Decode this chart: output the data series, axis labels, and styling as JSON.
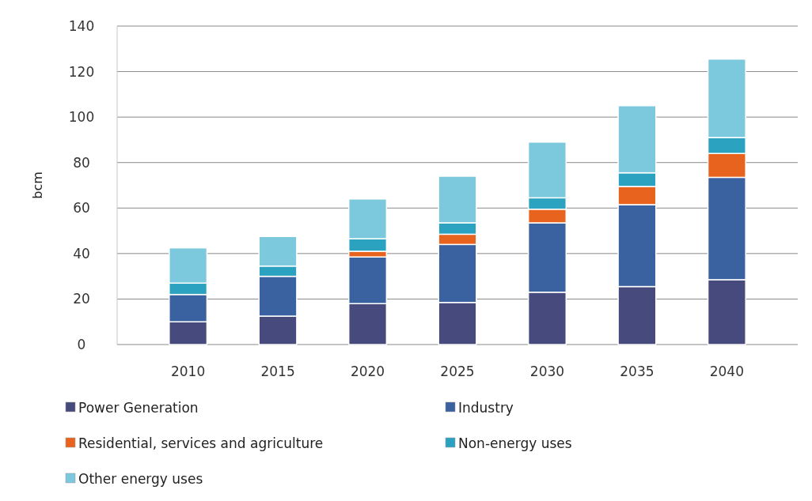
{
  "chart_data": {
    "type": "bar",
    "stacked": true,
    "ylabel": "bcm",
    "categories": [
      "2010",
      "2015",
      "2020",
      "2025",
      "2030",
      "2035",
      "2040"
    ],
    "series": [
      {
        "name": "Power Generation",
        "color": "#474a7c",
        "values": [
          10,
          12.5,
          18,
          18.5,
          23,
          25.5,
          28.5
        ]
      },
      {
        "name": "Industry",
        "color": "#3a62a0",
        "values": [
          12,
          17.5,
          20.5,
          25.5,
          30.5,
          36,
          45
        ]
      },
      {
        "name": "Residential, services and agriculture",
        "color": "#e8641e",
        "values": [
          0,
          0,
          2.5,
          4.5,
          6,
          8,
          10.5
        ]
      },
      {
        "name": "Non-energy uses",
        "color": "#2ba2bf",
        "values": [
          5,
          4.5,
          5.5,
          5,
          5,
          6,
          7
        ]
      },
      {
        "name": "Other energy uses",
        "color": "#7cc9de",
        "values": [
          15.5,
          13,
          17.5,
          20.5,
          24.5,
          29.5,
          34.5
        ]
      }
    ],
    "ylim": [
      0,
      140
    ],
    "yticks": [
      0,
      20,
      40,
      60,
      80,
      100,
      120,
      140
    ],
    "grid": "y",
    "legend": "bottom"
  }
}
